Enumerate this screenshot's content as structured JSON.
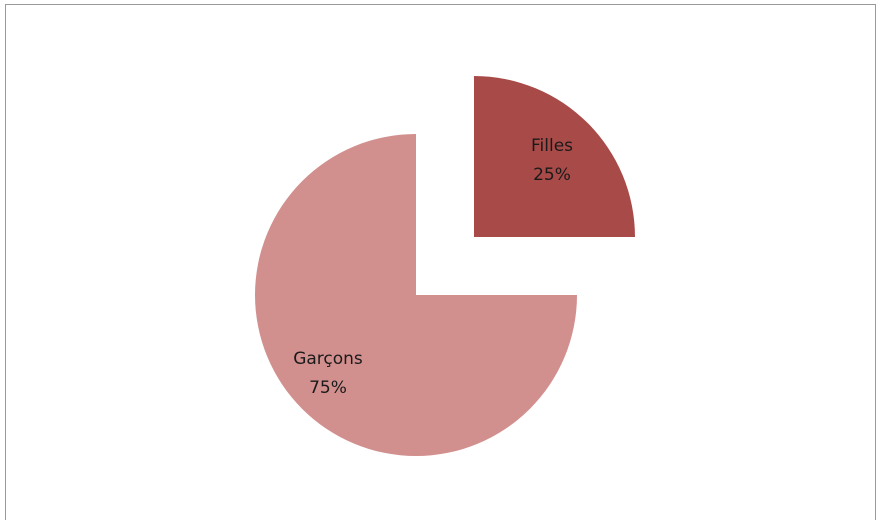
{
  "chart_data": {
    "type": "pie",
    "title": "",
    "slices": [
      {
        "label": "Filles",
        "value": 25,
        "value_label": "25%",
        "color": "#a84a48"
      },
      {
        "label": "Garçons",
        "value": 75,
        "value_label": "75%",
        "color": "#d18f8e"
      }
    ],
    "exploded": "Filles",
    "legend": "none"
  }
}
